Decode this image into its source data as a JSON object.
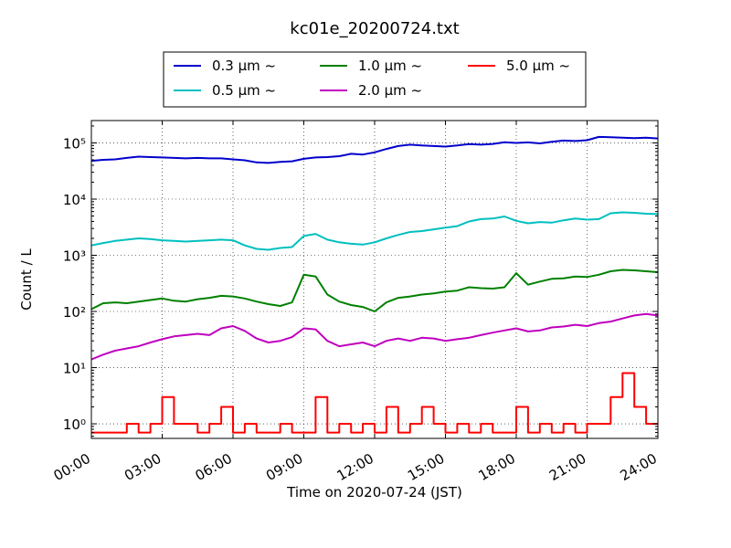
{
  "chart_data": {
    "type": "line",
    "title": "kc01e_20200724.txt",
    "xlabel": "Time on 2020-07-24 (JST)",
    "ylabel": "Count / L",
    "y_scale": "log",
    "ylim": [
      0.55,
      250000
    ],
    "grid": true,
    "legend_position": "top-center",
    "x_ticks": [
      "00:00",
      "03:00",
      "06:00",
      "09:00",
      "12:00",
      "15:00",
      "18:00",
      "21:00",
      "24:00"
    ],
    "y_ticks": [
      {
        "value": 1,
        "label": "10⁰"
      },
      {
        "value": 10,
        "label": "10¹"
      },
      {
        "value": 100,
        "label": "10²"
      },
      {
        "value": 1000,
        "label": "10³"
      },
      {
        "value": 10000,
        "label": "10⁴"
      },
      {
        "value": 100000,
        "label": "10⁵"
      }
    ],
    "x_hours": [
      0,
      0.5,
      1,
      1.5,
      2,
      2.5,
      3,
      3.5,
      4,
      4.5,
      5,
      5.5,
      6,
      6.5,
      7,
      7.5,
      8,
      8.5,
      9,
      9.5,
      10,
      10.5,
      11,
      11.5,
      12,
      12.5,
      13,
      13.5,
      14,
      14.5,
      15,
      15.5,
      16,
      16.5,
      17,
      17.5,
      18,
      18.5,
      19,
      19.5,
      20,
      20.5,
      21,
      21.5,
      22,
      22.5,
      23,
      23.5,
      24
    ],
    "series": [
      {
        "name": "0.3 μm ~",
        "color": "#0000cc",
        "values": [
          48000,
          50000,
          51000,
          54000,
          57000,
          56000,
          55000,
          54000,
          53000,
          54000,
          53000,
          53000,
          51000,
          49000,
          45000,
          44000,
          46000,
          47000,
          52000,
          55000,
          56000,
          58000,
          64000,
          62000,
          68000,
          78000,
          88000,
          93000,
          90000,
          88000,
          86000,
          90000,
          95000,
          93000,
          96000,
          103000,
          100000,
          102000,
          98000,
          105000,
          110000,
          108000,
          112000,
          128000,
          126000,
          124000,
          122000,
          124000,
          120000
        ]
      },
      {
        "name": "0.5 μm ~",
        "color": "#00bfbf",
        "values": [
          1500,
          1650,
          1800,
          1900,
          2000,
          1950,
          1850,
          1800,
          1750,
          1800,
          1850,
          1900,
          1850,
          1500,
          1300,
          1250,
          1350,
          1400,
          2200,
          2400,
          1900,
          1700,
          1600,
          1550,
          1700,
          2000,
          2300,
          2600,
          2700,
          2900,
          3100,
          3300,
          4000,
          4400,
          4500,
          4900,
          4100,
          3700,
          3900,
          3800,
          4200,
          4500,
          4300,
          4400,
          5600,
          5800,
          5700,
          5500,
          5400
        ]
      },
      {
        "name": "1.0 μm ~",
        "color": "#008000",
        "values": [
          110,
          140,
          145,
          140,
          150,
          160,
          170,
          155,
          150,
          165,
          175,
          190,
          185,
          170,
          150,
          135,
          125,
          145,
          450,
          420,
          200,
          150,
          130,
          120,
          100,
          145,
          175,
          185,
          200,
          210,
          225,
          235,
          270,
          260,
          255,
          270,
          480,
          300,
          340,
          380,
          390,
          420,
          410,
          450,
          520,
          550,
          540,
          520,
          500
        ]
      },
      {
        "name": "2.0 μm ~",
        "color": "#bf00bf",
        "values": [
          14,
          17,
          20,
          22,
          24,
          28,
          32,
          36,
          38,
          40,
          38,
          50,
          55,
          45,
          33,
          28,
          30,
          35,
          50,
          48,
          30,
          24,
          26,
          28,
          24,
          30,
          33,
          30,
          34,
          33,
          30,
          32,
          34,
          38,
          42,
          46,
          50,
          44,
          46,
          52,
          54,
          58,
          55,
          62,
          66,
          75,
          85,
          90,
          85
        ]
      },
      {
        "name": "5.0 μm ~",
        "color": "#ff0000",
        "values": [
          0.7,
          0.7,
          0.7,
          1,
          0.7,
          1,
          3,
          1,
          1,
          0.7,
          1,
          2,
          0.7,
          1,
          0.7,
          0.7,
          1,
          0.7,
          0.7,
          3,
          0.7,
          1,
          0.7,
          1,
          0.7,
          2,
          0.7,
          1,
          2,
          1,
          0.7,
          1,
          0.7,
          1,
          0.7,
          0.7,
          2,
          0.7,
          1,
          0.7,
          1,
          0.7,
          1,
          1,
          3,
          8,
          2,
          1,
          1
        ]
      }
    ]
  }
}
